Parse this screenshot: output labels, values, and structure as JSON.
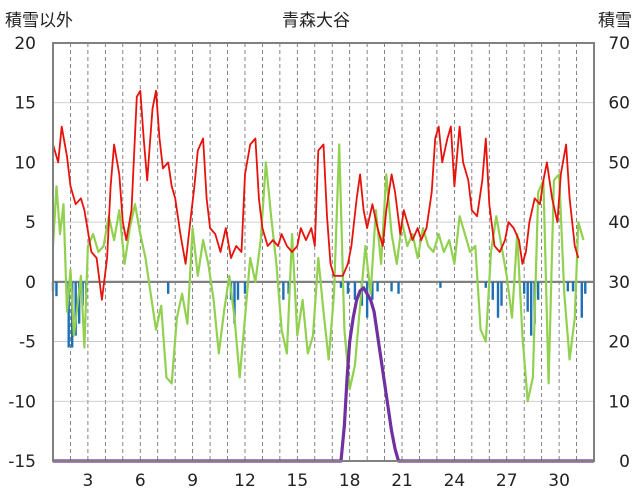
{
  "chart_data": {
    "type": "line",
    "title": "青森大谷",
    "left_axis": {
      "label": "積雪以外",
      "ylim": [
        -15,
        20
      ],
      "ticks": [
        20,
        15,
        10,
        5,
        0,
        -5,
        -10,
        -15
      ]
    },
    "right_axis": {
      "label": "積雪",
      "ylim": [
        0,
        70
      ],
      "ticks": [
        70,
        60,
        50,
        40,
        30,
        20,
        10,
        0
      ]
    },
    "x_axis": {
      "xlim": [
        1,
        32
      ],
      "ticks": [
        3,
        6,
        9,
        12,
        15,
        18,
        21,
        24,
        27,
        30
      ],
      "tick_labels": [
        "3",
        "6",
        "9",
        "12",
        "15",
        "18",
        "21",
        "24",
        "27",
        "30"
      ],
      "gridlines_every_day": true
    },
    "colors": {
      "temperature_red": "#e8120c",
      "green_series": "#92d050",
      "precip_blue": "#1f6fb4",
      "snow_purple": "#7030a0",
      "zero_line": "#808080"
    },
    "series": [
      {
        "axis": "left",
        "color_key": "temperature_red",
        "points": [
          [
            1.0,
            11.5
          ],
          [
            1.3,
            10.0
          ],
          [
            1.5,
            13.0
          ],
          [
            1.8,
            10.5
          ],
          [
            2.0,
            8.0
          ],
          [
            2.3,
            6.5
          ],
          [
            2.6,
            7.0
          ],
          [
            2.8,
            6.0
          ],
          [
            3.2,
            2.5
          ],
          [
            3.5,
            2.0
          ],
          [
            3.8,
            -1.5
          ],
          [
            4.1,
            2.0
          ],
          [
            4.3,
            8.0
          ],
          [
            4.5,
            11.5
          ],
          [
            4.8,
            9.0
          ],
          [
            5.0,
            5.0
          ],
          [
            5.2,
            3.5
          ],
          [
            5.5,
            6.0
          ],
          [
            5.8,
            15.5
          ],
          [
            6.0,
            16.0
          ],
          [
            6.2,
            12.0
          ],
          [
            6.4,
            8.5
          ],
          [
            6.7,
            14.5
          ],
          [
            6.9,
            16.0
          ],
          [
            7.1,
            12.0
          ],
          [
            7.3,
            9.5
          ],
          [
            7.6,
            10.0
          ],
          [
            7.8,
            8.0
          ],
          [
            8.0,
            7.0
          ],
          [
            8.3,
            4.0
          ],
          [
            8.6,
            1.5
          ],
          [
            8.9,
            5.5
          ],
          [
            9.1,
            8.0
          ],
          [
            9.3,
            11.0
          ],
          [
            9.6,
            12.0
          ],
          [
            9.8,
            7.0
          ],
          [
            10.0,
            4.5
          ],
          [
            10.3,
            4.0
          ],
          [
            10.6,
            2.5
          ],
          [
            10.9,
            4.5
          ],
          [
            11.2,
            2.0
          ],
          [
            11.5,
            3.0
          ],
          [
            11.8,
            2.5
          ],
          [
            12.0,
            9.0
          ],
          [
            12.3,
            11.5
          ],
          [
            12.6,
            12.0
          ],
          [
            12.8,
            7.0
          ],
          [
            13.0,
            4.5
          ],
          [
            13.3,
            3.0
          ],
          [
            13.6,
            3.5
          ],
          [
            13.9,
            3.0
          ],
          [
            14.1,
            4.0
          ],
          [
            14.4,
            3.0
          ],
          [
            14.7,
            2.5
          ],
          [
            15.0,
            3.0
          ],
          [
            15.2,
            4.5
          ],
          [
            15.5,
            3.5
          ],
          [
            15.8,
            4.5
          ],
          [
            16.0,
            3.0
          ],
          [
            16.2,
            11.0
          ],
          [
            16.5,
            11.5
          ],
          [
            16.7,
            5.5
          ],
          [
            16.9,
            1.5
          ],
          [
            17.1,
            0.5
          ],
          [
            17.4,
            0.5
          ],
          [
            17.6,
            0.5
          ],
          [
            17.9,
            1.5
          ],
          [
            18.1,
            3.0
          ],
          [
            18.4,
            7.0
          ],
          [
            18.6,
            9.0
          ],
          [
            18.8,
            6.0
          ],
          [
            19.0,
            4.5
          ],
          [
            19.3,
            6.5
          ],
          [
            19.6,
            4.5
          ],
          [
            19.9,
            3.0
          ],
          [
            20.1,
            6.0
          ],
          [
            20.4,
            9.0
          ],
          [
            20.6,
            7.5
          ],
          [
            20.9,
            4.0
          ],
          [
            21.1,
            6.0
          ],
          [
            21.4,
            4.5
          ],
          [
            21.6,
            3.5
          ],
          [
            21.9,
            4.5
          ],
          [
            22.1,
            3.5
          ],
          [
            22.4,
            4.5
          ],
          [
            22.7,
            7.5
          ],
          [
            22.9,
            12.0
          ],
          [
            23.1,
            13.0
          ],
          [
            23.3,
            10.0
          ],
          [
            23.6,
            12.0
          ],
          [
            23.8,
            13.0
          ],
          [
            24.0,
            8.0
          ],
          [
            24.3,
            13.0
          ],
          [
            24.5,
            10.0
          ],
          [
            24.8,
            8.5
          ],
          [
            25.0,
            6.0
          ],
          [
            25.3,
            5.5
          ],
          [
            25.6,
            8.5
          ],
          [
            25.8,
            12.0
          ],
          [
            26.0,
            6.5
          ],
          [
            26.3,
            3.0
          ],
          [
            26.6,
            2.5
          ],
          [
            26.9,
            3.5
          ],
          [
            27.1,
            5.0
          ],
          [
            27.4,
            4.5
          ],
          [
            27.7,
            3.5
          ],
          [
            27.9,
            1.5
          ],
          [
            28.1,
            2.5
          ],
          [
            28.3,
            5.0
          ],
          [
            28.6,
            7.0
          ],
          [
            28.9,
            6.5
          ],
          [
            29.1,
            8.5
          ],
          [
            29.3,
            10.0
          ],
          [
            29.6,
            7.0
          ],
          [
            29.9,
            5.0
          ],
          [
            30.1,
            9.0
          ],
          [
            30.4,
            11.5
          ],
          [
            30.6,
            7.0
          ],
          [
            30.9,
            3.0
          ],
          [
            31.1,
            2.0
          ]
        ]
      },
      {
        "axis": "left",
        "color_key": "green_series",
        "points": [
          [
            1.0,
            3.0
          ],
          [
            1.2,
            8.0
          ],
          [
            1.4,
            4.0
          ],
          [
            1.6,
            6.5
          ],
          [
            1.8,
            -2.5
          ],
          [
            2.0,
            1.0
          ],
          [
            2.2,
            -4.5
          ],
          [
            2.4,
            -2.0
          ],
          [
            2.6,
            0.5
          ],
          [
            2.8,
            -5.5
          ],
          [
            3.0,
            3.0
          ],
          [
            3.3,
            4.0
          ],
          [
            3.6,
            2.5
          ],
          [
            3.9,
            3.0
          ],
          [
            4.2,
            5.5
          ],
          [
            4.5,
            3.5
          ],
          [
            4.8,
            6.0
          ],
          [
            5.1,
            1.5
          ],
          [
            5.4,
            4.5
          ],
          [
            5.7,
            6.5
          ],
          [
            6.0,
            4.0
          ],
          [
            6.3,
            2.0
          ],
          [
            6.6,
            -1.0
          ],
          [
            6.9,
            -4.0
          ],
          [
            7.2,
            -2.0
          ],
          [
            7.5,
            -8.0
          ],
          [
            7.8,
            -8.5
          ],
          [
            8.1,
            -3.0
          ],
          [
            8.4,
            -1.0
          ],
          [
            8.7,
            -3.5
          ],
          [
            9.0,
            4.5
          ],
          [
            9.3,
            0.5
          ],
          [
            9.6,
            3.5
          ],
          [
            9.9,
            1.5
          ],
          [
            10.2,
            -1.5
          ],
          [
            10.5,
            -6.0
          ],
          [
            10.8,
            -2.5
          ],
          [
            11.1,
            0.5
          ],
          [
            11.4,
            -3.0
          ],
          [
            11.7,
            -8.0
          ],
          [
            12.0,
            -3.0
          ],
          [
            12.3,
            2.0
          ],
          [
            12.6,
            0.0
          ],
          [
            12.9,
            3.5
          ],
          [
            13.2,
            10.0
          ],
          [
            13.5,
            5.5
          ],
          [
            13.8,
            1.5
          ],
          [
            14.1,
            -4.0
          ],
          [
            14.4,
            -6.0
          ],
          [
            14.7,
            4.0
          ],
          [
            15.0,
            -4.5
          ],
          [
            15.3,
            -1.5
          ],
          [
            15.6,
            -6.0
          ],
          [
            15.9,
            -4.5
          ],
          [
            16.2,
            2.0
          ],
          [
            16.5,
            -2.5
          ],
          [
            16.8,
            -6.5
          ],
          [
            17.1,
            -1.0
          ],
          [
            17.4,
            11.5
          ],
          [
            17.7,
            -4.0
          ],
          [
            18.0,
            -9.0
          ],
          [
            18.3,
            -7.0
          ],
          [
            18.6,
            -2.0
          ],
          [
            18.9,
            3.0
          ],
          [
            19.2,
            -1.0
          ],
          [
            19.5,
            6.0
          ],
          [
            19.8,
            1.5
          ],
          [
            20.1,
            9.0
          ],
          [
            20.4,
            4.0
          ],
          [
            20.7,
            1.5
          ],
          [
            21.0,
            5.0
          ],
          [
            21.3,
            3.0
          ],
          [
            21.6,
            4.0
          ],
          [
            21.9,
            2.0
          ],
          [
            22.2,
            4.5
          ],
          [
            22.5,
            3.0
          ],
          [
            22.8,
            2.5
          ],
          [
            23.1,
            4.0
          ],
          [
            23.4,
            2.5
          ],
          [
            23.7,
            3.5
          ],
          [
            24.0,
            1.5
          ],
          [
            24.3,
            5.5
          ],
          [
            24.6,
            4.0
          ],
          [
            24.9,
            2.5
          ],
          [
            25.2,
            3.0
          ],
          [
            25.5,
            -4.0
          ],
          [
            25.8,
            -5.0
          ],
          [
            26.1,
            2.5
          ],
          [
            26.4,
            5.5
          ],
          [
            26.7,
            3.0
          ],
          [
            27.0,
            0.5
          ],
          [
            27.3,
            -3.0
          ],
          [
            27.6,
            4.0
          ],
          [
            27.9,
            -4.5
          ],
          [
            28.2,
            -10.0
          ],
          [
            28.5,
            -8.0
          ],
          [
            28.8,
            7.5
          ],
          [
            29.1,
            8.5
          ],
          [
            29.4,
            -8.5
          ],
          [
            29.7,
            8.5
          ],
          [
            30.0,
            9.0
          ],
          [
            30.3,
            -1.0
          ],
          [
            30.6,
            -6.5
          ],
          [
            30.9,
            -3.0
          ],
          [
            31.1,
            5.0
          ],
          [
            31.4,
            3.5
          ]
        ]
      },
      {
        "axis": "right",
        "color_key": "snow_purple",
        "points": [
          [
            1.0,
            0
          ],
          [
            17.5,
            0
          ],
          [
            17.7,
            6
          ],
          [
            17.85,
            14
          ],
          [
            18.0,
            20
          ],
          [
            18.2,
            24
          ],
          [
            18.4,
            27
          ],
          [
            18.6,
            28.5
          ],
          [
            18.8,
            29
          ],
          [
            19.0,
            28
          ],
          [
            19.2,
            27
          ],
          [
            19.4,
            25
          ],
          [
            19.6,
            21
          ],
          [
            19.8,
            17
          ],
          [
            20.0,
            13
          ],
          [
            20.2,
            9
          ],
          [
            20.4,
            5
          ],
          [
            20.6,
            2
          ],
          [
            20.8,
            0
          ],
          [
            32.0,
            0
          ]
        ]
      }
    ],
    "precipitation_bars": {
      "axis": "left",
      "color_key": "precip_blue",
      "bars": [
        [
          1.0,
          -0.8
        ],
        [
          1.2,
          -1.2
        ],
        [
          1.9,
          -5.5
        ],
        [
          2.1,
          -5.5
        ],
        [
          2.3,
          -4.5
        ],
        [
          2.5,
          -3.5
        ],
        [
          2.7,
          -2.0
        ],
        [
          2.9,
          -1.0
        ],
        [
          7.6,
          -1.0
        ],
        [
          11.2,
          -1.5
        ],
        [
          11.4,
          -3.5
        ],
        [
          11.6,
          -1.5
        ],
        [
          12.0,
          -1.0
        ],
        [
          14.2,
          -1.5
        ],
        [
          14.5,
          -1.0
        ],
        [
          17.5,
          -0.5
        ],
        [
          17.9,
          -1.0
        ],
        [
          18.3,
          -1.5
        ],
        [
          18.7,
          -2.0
        ],
        [
          19.0,
          -3.0
        ],
        [
          19.3,
          -1.5
        ],
        [
          19.6,
          -0.8
        ],
        [
          20.4,
          -0.8
        ],
        [
          20.8,
          -1.0
        ],
        [
          23.2,
          -0.5
        ],
        [
          25.8,
          -0.5
        ],
        [
          26.2,
          -1.5
        ],
        [
          26.5,
          -3.0
        ],
        [
          26.7,
          -2.0
        ],
        [
          28.0,
          -1.0
        ],
        [
          28.2,
          -2.5
        ],
        [
          28.4,
          -4.5
        ],
        [
          28.6,
          -3.5
        ],
        [
          28.8,
          -1.5
        ],
        [
          30.5,
          -0.8
        ],
        [
          30.8,
          -0.8
        ],
        [
          31.3,
          -3.0
        ],
        [
          31.5,
          -1.0
        ]
      ]
    }
  }
}
